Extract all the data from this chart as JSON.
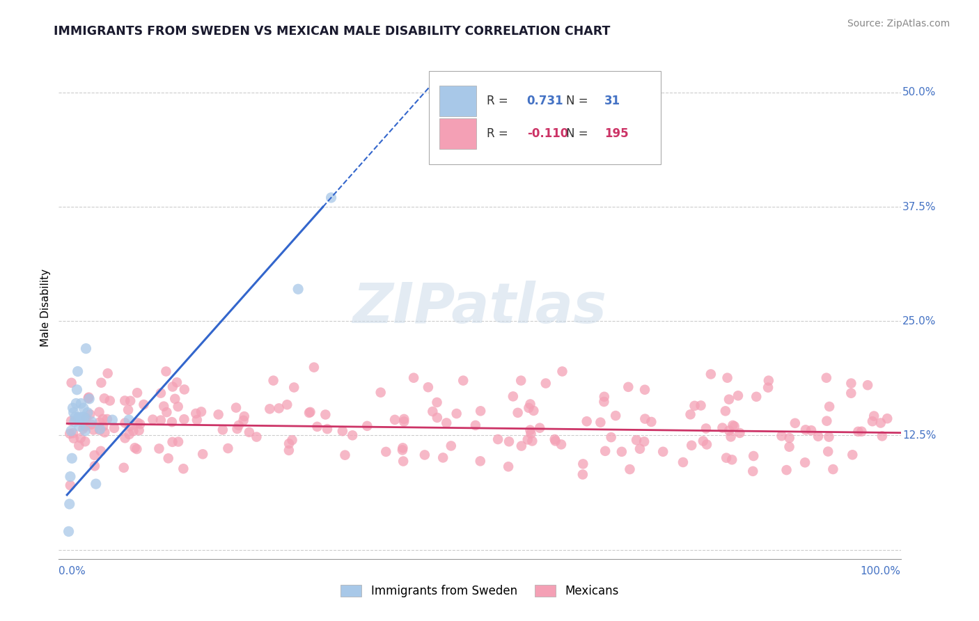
{
  "title": "IMMIGRANTS FROM SWEDEN VS MEXICAN MALE DISABILITY CORRELATION CHART",
  "source": "Source: ZipAtlas.com",
  "ylabel": "Male Disability",
  "blue_color": "#a8c8e8",
  "blue_line_color": "#3366cc",
  "pink_color": "#f4a0b5",
  "pink_line_color": "#cc3366",
  "legend_blue_r": "0.731",
  "legend_blue_n": "31",
  "legend_pink_r": "-0.110",
  "legend_pink_n": "195",
  "watermark": "ZIPatlas",
  "background_color": "#ffffff",
  "grid_color": "#cccccc",
  "xlim": [
    0.0,
    1.0
  ],
  "ylim": [
    0.0,
    0.52
  ],
  "ytick_vals": [
    0.0,
    0.125,
    0.25,
    0.375,
    0.5
  ],
  "ytick_labels": [
    "",
    "12.5%",
    "25.0%",
    "37.5%",
    "50.0%"
  ]
}
